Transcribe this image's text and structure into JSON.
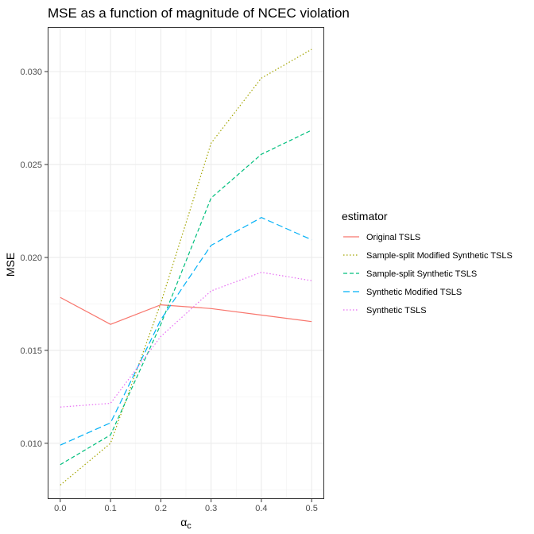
{
  "chart_data": {
    "type": "line",
    "title": "MSE as a function of magnitude of NCEC violation",
    "xlabel": "α",
    "xlabel_sub": "c",
    "ylabel": "MSE",
    "x": [
      0.0,
      0.1,
      0.2,
      0.3,
      0.4,
      0.5
    ],
    "x_tick_labels": [
      "0.0",
      "0.1",
      "0.2",
      "0.3",
      "0.4",
      "0.5"
    ],
    "xlim": [
      -0.025,
      0.525
    ],
    "y_ticks": [
      0.01,
      0.015,
      0.02,
      0.025,
      0.03
    ],
    "y_tick_labels": [
      "0.010",
      "0.015",
      "0.020",
      "0.025",
      "0.030"
    ],
    "ylim": [
      0.007,
      0.0324
    ],
    "grid": true,
    "legend": {
      "title": "estimator",
      "position": "right"
    },
    "series": [
      {
        "name": "Original TSLS",
        "color": "#F8766D",
        "dash": "solid",
        "values": [
          0.01785,
          0.0164,
          0.01745,
          0.01725,
          0.0169,
          0.01655
        ]
      },
      {
        "name": "Sample-split Modified Synthetic TSLS",
        "color": "#A3A500",
        "dash": "dotted",
        "values": [
          0.00775,
          0.01,
          0.01755,
          0.02615,
          0.02965,
          0.0312
        ]
      },
      {
        "name": "Sample-split Synthetic TSLS",
        "color": "#00BF7D",
        "dash": "dashed",
        "values": [
          0.00885,
          0.01045,
          0.0164,
          0.0232,
          0.02555,
          0.02685
        ]
      },
      {
        "name": "Synthetic Modified TSLS",
        "color": "#00B0F6",
        "dash": "longdash",
        "values": [
          0.0099,
          0.0111,
          0.01665,
          0.02065,
          0.02215,
          0.02095
        ]
      },
      {
        "name": "Synthetic TSLS",
        "color": "#E76BF3",
        "dash": "dotted",
        "values": [
          0.01195,
          0.01215,
          0.01575,
          0.0182,
          0.0192,
          0.01875
        ]
      }
    ]
  }
}
